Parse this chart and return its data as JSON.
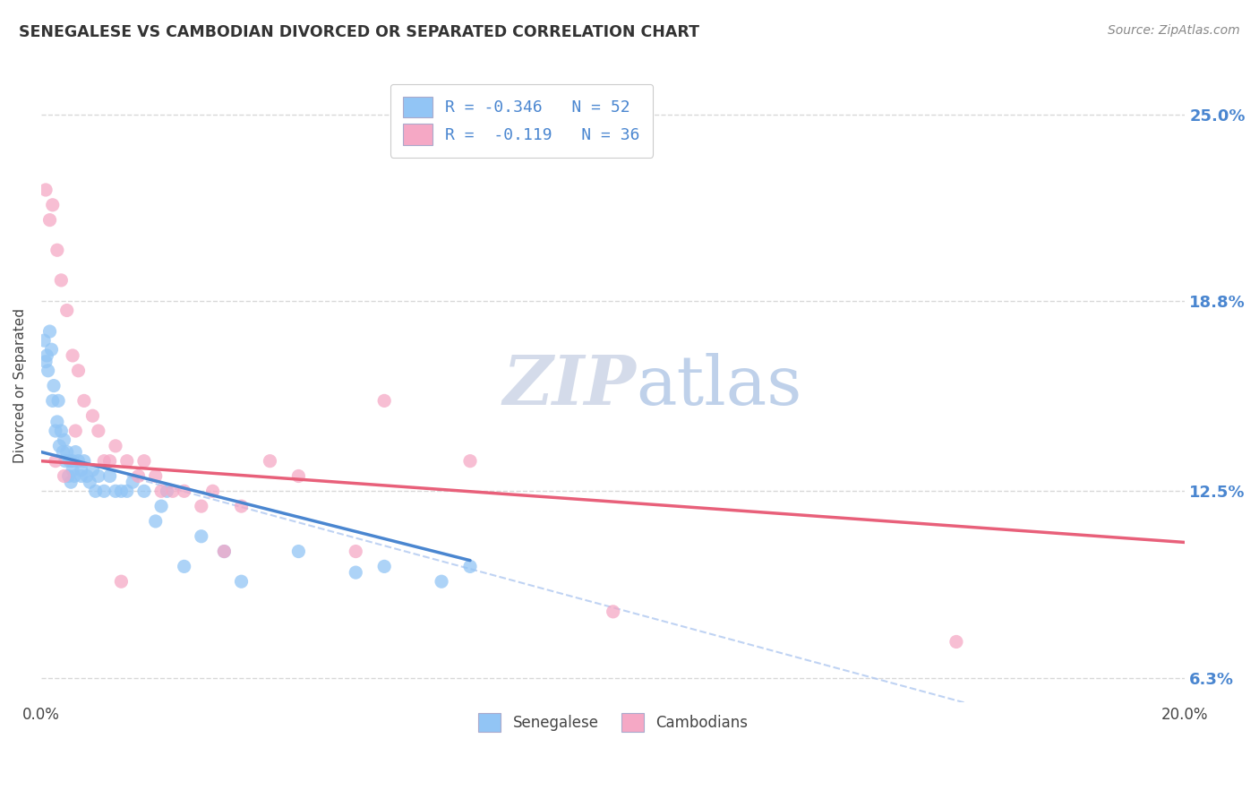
{
  "title": "SENEGALESE VS CAMBODIAN DIVORCED OR SEPARATED CORRELATION CHART",
  "source": "Source: ZipAtlas.com",
  "ylabel": "Divorced or Separated",
  "legend_labels": [
    "Senegalese",
    "Cambodians"
  ],
  "legend_r": [
    -0.346,
    -0.119
  ],
  "legend_n": [
    52,
    36
  ],
  "scatter_blue": {
    "x": [
      0.05,
      0.08,
      0.1,
      0.12,
      0.15,
      0.18,
      0.2,
      0.22,
      0.25,
      0.28,
      0.3,
      0.32,
      0.35,
      0.38,
      0.4,
      0.42,
      0.45,
      0.48,
      0.5,
      0.52,
      0.55,
      0.58,
      0.6,
      0.65,
      0.7,
      0.75,
      0.8,
      0.85,
      0.9,
      0.95,
      1.0,
      1.1,
      1.2,
      1.4,
      1.6,
      1.8,
      2.0,
      2.2,
      2.5,
      2.8,
      3.2,
      3.5,
      4.5,
      5.5,
      6.0,
      7.0,
      7.5,
      2.1,
      1.5,
      0.7,
      1.3,
      0.55
    ],
    "y": [
      17.5,
      16.8,
      17.0,
      16.5,
      17.8,
      17.2,
      15.5,
      16.0,
      14.5,
      14.8,
      15.5,
      14.0,
      14.5,
      13.8,
      14.2,
      13.5,
      13.8,
      13.0,
      13.5,
      12.8,
      13.2,
      13.0,
      13.8,
      13.5,
      13.2,
      13.5,
      13.0,
      12.8,
      13.2,
      12.5,
      13.0,
      12.5,
      13.0,
      12.5,
      12.8,
      12.5,
      11.5,
      12.5,
      10.0,
      11.0,
      10.5,
      9.5,
      10.5,
      9.8,
      10.0,
      9.5,
      10.0,
      12.0,
      12.5,
      13.0,
      12.5,
      13.5
    ]
  },
  "scatter_pink": {
    "x": [
      0.08,
      0.15,
      0.2,
      0.28,
      0.35,
      0.45,
      0.55,
      0.65,
      0.75,
      0.9,
      1.0,
      1.1,
      1.3,
      1.5,
      1.7,
      1.8,
      2.0,
      2.3,
      2.5,
      2.8,
      3.0,
      3.5,
      4.0,
      4.5,
      5.5,
      6.0,
      7.5,
      10.0,
      16.0,
      0.25,
      0.4,
      0.6,
      1.2,
      2.1,
      3.2,
      1.4
    ],
    "y": [
      22.5,
      21.5,
      22.0,
      20.5,
      19.5,
      18.5,
      17.0,
      16.5,
      15.5,
      15.0,
      14.5,
      13.5,
      14.0,
      13.5,
      13.0,
      13.5,
      13.0,
      12.5,
      12.5,
      12.0,
      12.5,
      12.0,
      13.5,
      13.0,
      10.5,
      15.5,
      13.5,
      8.5,
      7.5,
      13.5,
      13.0,
      14.5,
      13.5,
      12.5,
      10.5,
      9.5
    ]
  },
  "trendline_blue": {
    "x": [
      0.0,
      7.5
    ],
    "y": [
      13.8,
      10.2
    ]
  },
  "trendline_pink": {
    "x": [
      0.0,
      20.0
    ],
    "y": [
      13.5,
      10.8
    ]
  },
  "diagonal_dashed": {
    "x": [
      1.5,
      20.0
    ],
    "y": [
      13.0,
      3.5
    ]
  },
  "xlim": [
    0.0,
    20.0
  ],
  "ylim": [
    5.5,
    26.5
  ],
  "yticks": [
    6.3,
    12.5,
    18.8,
    25.0
  ],
  "ytick_labels": [
    "6.3%",
    "12.5%",
    "18.8%",
    "25.0%"
  ],
  "xtick_labels": [
    "0.0%",
    "20.0%"
  ],
  "xtick_vals": [
    0.0,
    20.0
  ],
  "bg_color": "#ffffff",
  "plot_bg_color": "#ffffff",
  "grid_color": "#d8d8d8",
  "blue_color": "#92c5f5",
  "pink_color": "#f5a8c5",
  "trendline_blue_color": "#4a86d0",
  "trendline_pink_color": "#e8607a",
  "diagonal_color": "#b0c8f0",
  "right_axis_color": "#4a86d0",
  "text_color": "#444444",
  "title_color": "#333333",
  "source_color": "#888888"
}
